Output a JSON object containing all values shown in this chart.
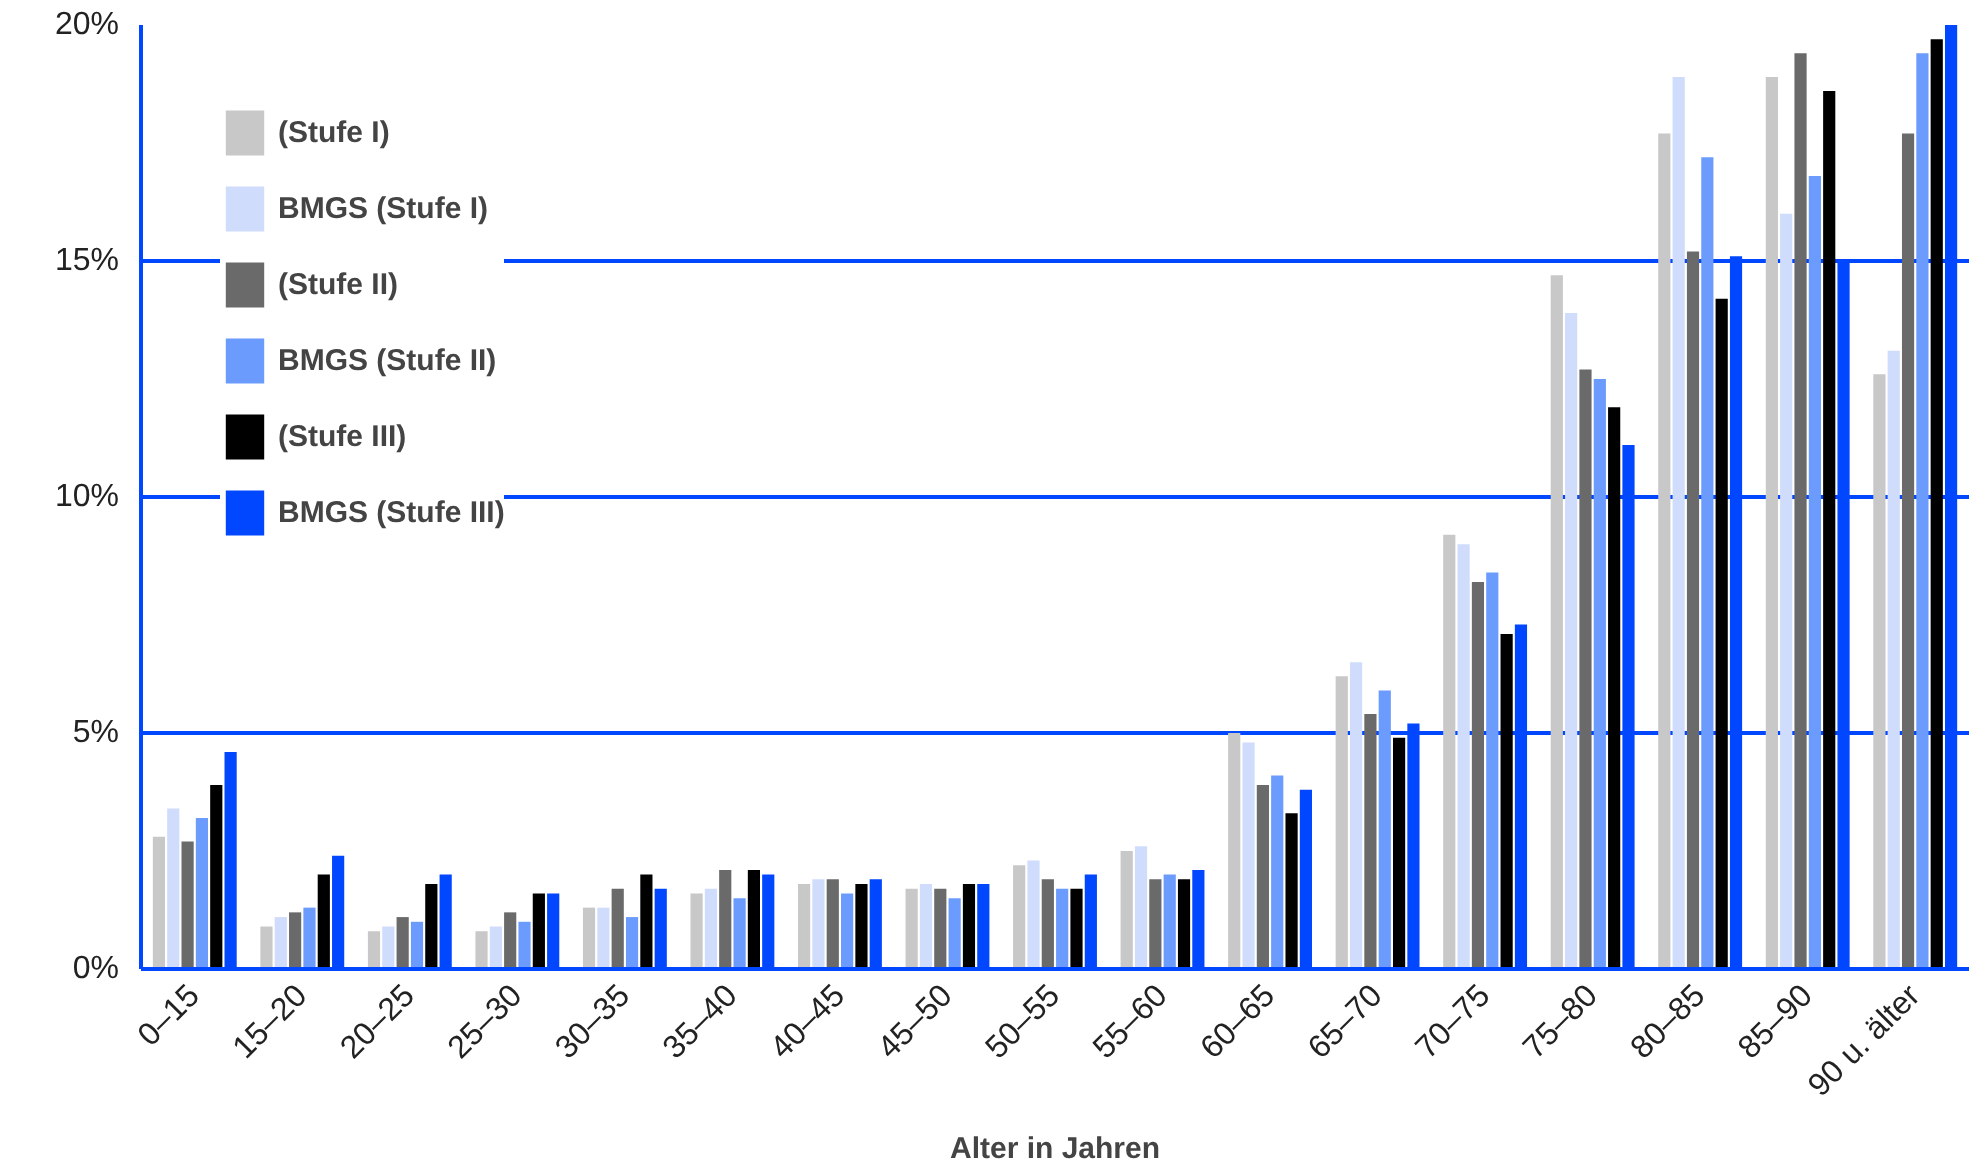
{
  "chart_data": {
    "type": "bar",
    "xlabel": "Alter in Jahren",
    "categories": [
      "0–15",
      "15–20",
      "20–25",
      "25–30",
      "30–35",
      "35–40",
      "40–45",
      "45–50",
      "50–55",
      "55–60",
      "60–65",
      "65–70",
      "70–75",
      "75–80",
      "80–85",
      "85–90",
      "90 u. älter"
    ],
    "series": [
      {
        "name": "(Stufe I)",
        "color": "#c8c8c8",
        "values": [
          2.8,
          0.9,
          0.8,
          0.8,
          1.3,
          1.6,
          1.8,
          1.7,
          2.2,
          2.5,
          5.0,
          6.2,
          9.2,
          14.7,
          17.7,
          18.9,
          12.6
        ]
      },
      {
        "name": "BMGS (Stufe I)",
        "color": "#cfdcfb",
        "values": [
          3.4,
          1.1,
          0.9,
          0.9,
          1.3,
          1.7,
          1.9,
          1.8,
          2.3,
          2.6,
          4.8,
          6.5,
          9.0,
          13.9,
          18.9,
          16.0,
          13.1
        ]
      },
      {
        "name": "(Stufe II)",
        "color": "#6a6a6a",
        "values": [
          2.7,
          1.2,
          1.1,
          1.2,
          1.7,
          2.1,
          1.9,
          1.7,
          1.9,
          1.9,
          3.9,
          5.4,
          8.2,
          12.7,
          15.2,
          19.4,
          17.7
        ]
      },
      {
        "name": "BMGS (Stufe II)",
        "color": "#6b9bfd",
        "values": [
          3.2,
          1.3,
          1.0,
          1.0,
          1.1,
          1.5,
          1.6,
          1.5,
          1.7,
          2.0,
          4.1,
          5.9,
          8.4,
          12.5,
          17.2,
          16.8,
          19.4
        ]
      },
      {
        "name": "(Stufe III)",
        "color": "#000000",
        "values": [
          3.9,
          2.0,
          1.8,
          1.6,
          2.0,
          2.1,
          1.8,
          1.8,
          1.7,
          1.9,
          3.3,
          4.9,
          7.1,
          11.9,
          14.2,
          18.6,
          19.7
        ]
      },
      {
        "name": "BMGS (Stufe III)",
        "color": "#0047ff",
        "values": [
          4.6,
          2.4,
          2.0,
          1.6,
          1.7,
          2.0,
          1.9,
          1.8,
          2.0,
          2.1,
          3.8,
          5.2,
          7.3,
          11.1,
          15.1,
          15.0,
          20.0
        ]
      }
    ],
    "ylim": [
      0,
      20
    ],
    "yticks": [
      {
        "value": 0,
        "label": "0%"
      },
      {
        "value": 5,
        "label": "5%"
      },
      {
        "value": 10,
        "label": "10%"
      },
      {
        "value": 15,
        "label": "15%"
      },
      {
        "value": 20,
        "label": "20%"
      }
    ],
    "grid": "y",
    "legend": "top left"
  }
}
